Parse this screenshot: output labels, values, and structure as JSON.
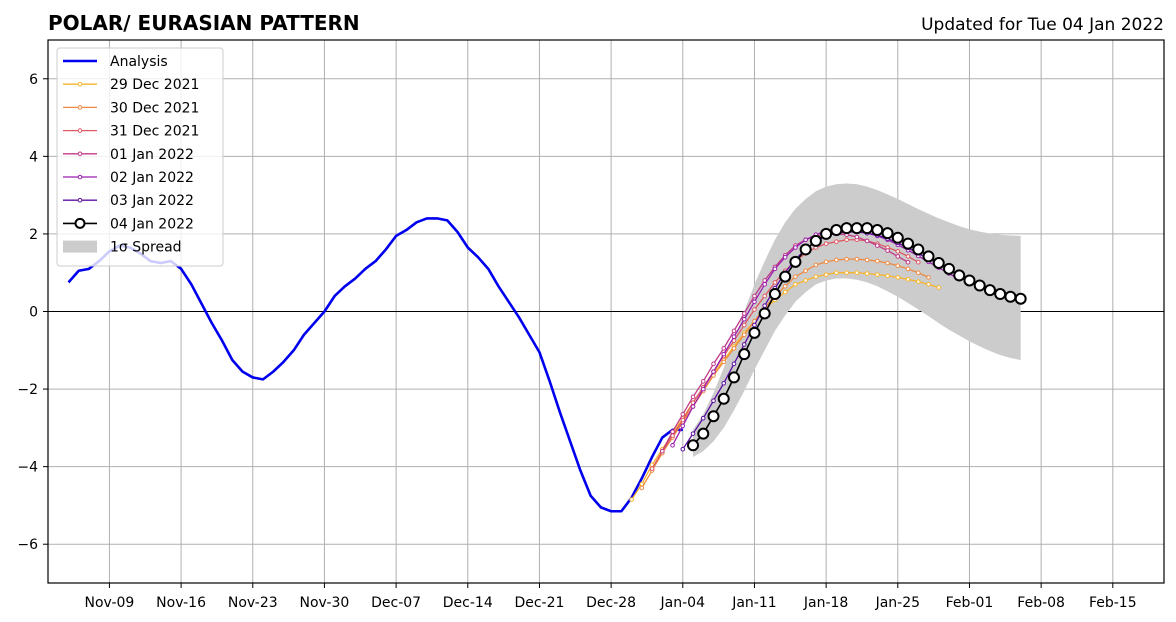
{
  "header": {
    "title": "POLAR/ EURASIAN  PATTERN",
    "updated": "Updated for Tue 04 Jan 2022"
  },
  "chart_data": {
    "type": "line",
    "title": "POLAR/ EURASIAN  PATTERN",
    "xlabel": "",
    "ylabel": "",
    "x_is_date": true,
    "xlim": [
      "2021-11-03",
      "2022-02-20"
    ],
    "ylim": [
      -7,
      7
    ],
    "yticks": [
      -6,
      -4,
      -2,
      0,
      2,
      4,
      6
    ],
    "ytick_labels": [
      "−6",
      "−4",
      "−2",
      "0",
      "2",
      "4",
      "6"
    ],
    "xticks": [
      "2021-11-09",
      "2021-11-16",
      "2021-11-23",
      "2021-11-30",
      "2021-12-07",
      "2021-12-14",
      "2021-12-21",
      "2021-12-28",
      "2022-01-04",
      "2022-01-11",
      "2022-01-18",
      "2022-01-25",
      "2022-02-01",
      "2022-02-08",
      "2022-02-15"
    ],
    "xtick_labels": [
      "Nov-09",
      "Nov-16",
      "Nov-23",
      "Nov-30",
      "Dec-07",
      "Dec-14",
      "Dec-21",
      "Dec-28",
      "Jan-04",
      "Jan-11",
      "Jan-18",
      "Jan-25",
      "Feb-01",
      "Feb-08",
      "Feb-15"
    ],
    "grid": true,
    "legend_position": "top-left",
    "analysis": {
      "name": "Analysis",
      "color": "#0000ee",
      "start": "2021-11-05",
      "values": [
        0.75,
        1.05,
        1.1,
        1.3,
        1.55,
        1.7,
        1.65,
        1.5,
        1.3,
        1.25,
        1.3,
        1.1,
        0.7,
        0.2,
        -0.3,
        -0.75,
        -1.25,
        -1.55,
        -1.7,
        -1.75,
        -1.55,
        -1.3,
        -1.0,
        -0.6,
        -0.3,
        0.0,
        0.4,
        0.65,
        0.85,
        1.1,
        1.3,
        1.6,
        1.95,
        2.1,
        2.3,
        2.4,
        2.4,
        2.35,
        2.05,
        1.65,
        1.4,
        1.1,
        0.65,
        0.25,
        -0.15,
        -0.6,
        -1.05,
        -1.8,
        -2.6,
        -3.35,
        -4.1,
        -4.75,
        -5.05,
        -5.15,
        -5.15,
        -4.8,
        -4.3,
        -3.75,
        -3.25,
        -3.05,
        -3.05
      ]
    },
    "series": [
      {
        "name": "29 Dec 2021",
        "color": "#f8b42c",
        "start": "2021-12-30",
        "values": [
          -4.85,
          -4.45,
          -3.95,
          -3.55,
          -3.15,
          -2.75,
          -2.35,
          -1.95,
          -1.6,
          -1.25,
          -0.9,
          -0.55,
          -0.25,
          0.05,
          0.3,
          0.5,
          0.7,
          0.8,
          0.9,
          0.95,
          1.0,
          1.0,
          1.0,
          0.98,
          0.95,
          0.92,
          0.88,
          0.83,
          0.77,
          0.7,
          0.62
        ]
      },
      {
        "name": "30 Dec 2021",
        "color": "#ee8a42",
        "start": "2021-12-31",
        "values": [
          -4.55,
          -4.1,
          -3.65,
          -3.25,
          -2.85,
          -2.45,
          -2.05,
          -1.65,
          -1.3,
          -0.95,
          -0.6,
          -0.25,
          0.1,
          0.4,
          0.65,
          0.9,
          1.05,
          1.2,
          1.28,
          1.33,
          1.35,
          1.35,
          1.33,
          1.3,
          1.25,
          1.18,
          1.1,
          1.0,
          0.88
        ]
      },
      {
        "name": "31 Dec 2021",
        "color": "#dd5a64",
        "start": "2022-01-01",
        "values": [
          -4.05,
          -3.6,
          -3.2,
          -2.8,
          -2.35,
          -1.95,
          -1.55,
          -1.15,
          -0.75,
          -0.35,
          0.05,
          0.4,
          0.75,
          1.05,
          1.3,
          1.5,
          1.65,
          1.75,
          1.8,
          1.85,
          1.85,
          1.82,
          1.75,
          1.65,
          1.55,
          1.42,
          1.27
        ]
      },
      {
        "name": "01 Jan 2022",
        "color": "#c03a8a",
        "start": "2022-01-02",
        "values": [
          -3.6,
          -3.1,
          -2.65,
          -2.2,
          -1.8,
          -1.35,
          -0.95,
          -0.5,
          -0.05,
          0.4,
          0.8,
          1.15,
          1.45,
          1.7,
          1.85,
          1.95,
          2.0,
          2.0,
          1.98,
          1.92,
          1.82,
          1.7,
          1.57,
          1.42,
          1.27
        ]
      },
      {
        "name": "02 Jan 2022",
        "color": "#9a1fb0",
        "start": "2022-01-03",
        "values": [
          -3.45,
          -2.95,
          -2.45,
          -2.0,
          -1.55,
          -1.1,
          -0.65,
          -0.2,
          0.25,
          0.7,
          1.1,
          1.4,
          1.65,
          1.85,
          1.98,
          2.08,
          2.1,
          2.1,
          2.08,
          2.02,
          1.95,
          1.85,
          1.72,
          1.58,
          1.43,
          1.28,
          1.13,
          0.98,
          0.83
        ]
      },
      {
        "name": "03 Jan 2022",
        "color": "#5c0fa0",
        "start": "2022-01-04",
        "values": [
          -3.55,
          -3.15,
          -2.75,
          -2.3,
          -1.85,
          -1.35,
          -0.85,
          -0.35,
          0.15,
          0.6,
          1.0,
          1.35,
          1.6,
          1.8,
          1.95,
          2.02,
          2.05,
          2.05,
          2.02,
          1.97,
          1.88,
          1.77,
          1.64,
          1.5,
          1.36,
          1.22,
          1.08,
          0.94,
          0.8,
          0.67,
          0.56
        ]
      },
      {
        "name": "04 Jan 2022",
        "color": "#000000",
        "start": "2022-01-05",
        "values": [
          -3.45,
          -3.15,
          -2.7,
          -2.25,
          -1.7,
          -1.1,
          -0.55,
          -0.05,
          0.45,
          0.9,
          1.28,
          1.6,
          1.82,
          2.0,
          2.1,
          2.15,
          2.15,
          2.15,
          2.1,
          2.02,
          1.9,
          1.75,
          1.6,
          1.42,
          1.25,
          1.1,
          0.93,
          0.8,
          0.67,
          0.55,
          0.45,
          0.38,
          0.33
        ]
      }
    ],
    "spread": {
      "name": "1σ Spread",
      "color": "#cccccc",
      "start": "2022-01-05",
      "upper": [
        -3.05,
        -2.65,
        -2.1,
        -1.45,
        -0.75,
        0.0,
        0.7,
        1.3,
        1.85,
        2.3,
        2.65,
        2.9,
        3.1,
        3.22,
        3.28,
        3.3,
        3.28,
        3.22,
        3.13,
        3.02,
        2.9,
        2.77,
        2.64,
        2.52,
        2.4,
        2.3,
        2.2,
        2.12,
        2.06,
        2.01,
        1.98,
        1.96,
        1.95
      ],
      "lower": [
        -3.75,
        -3.6,
        -3.35,
        -3.0,
        -2.55,
        -2.05,
        -1.5,
        -1.0,
        -0.5,
        -0.1,
        0.25,
        0.5,
        0.7,
        0.8,
        0.85,
        0.85,
        0.82,
        0.75,
        0.65,
        0.52,
        0.38,
        0.22,
        0.05,
        -0.12,
        -0.3,
        -0.47,
        -0.62,
        -0.77,
        -0.9,
        -1.02,
        -1.12,
        -1.2,
        -1.25
      ]
    }
  }
}
